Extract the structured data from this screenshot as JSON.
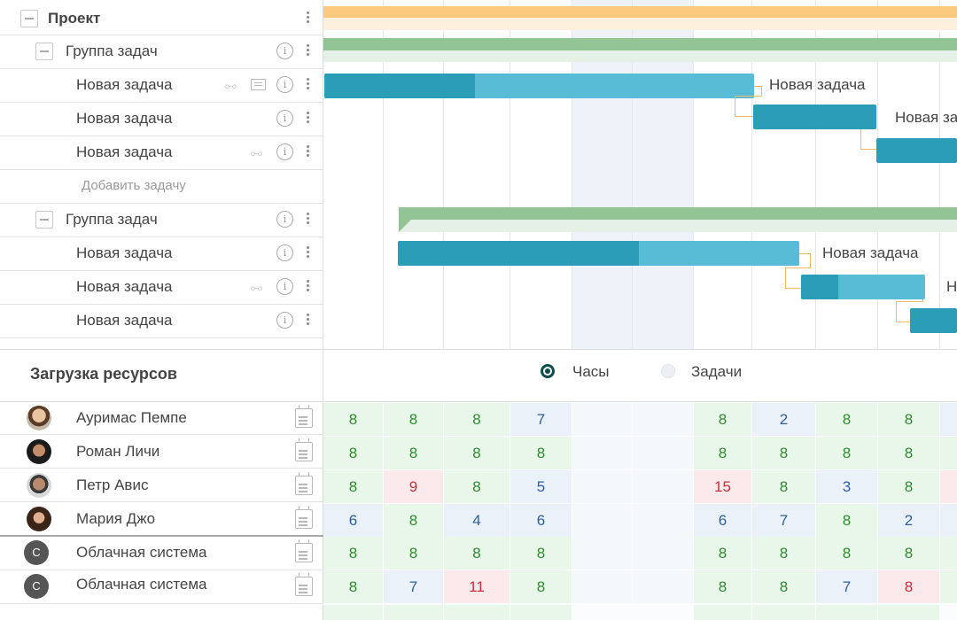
{
  "tree": {
    "project": {
      "label": "Проект"
    },
    "groups": [
      {
        "label": "Группа задач",
        "tasks": [
          {
            "label": "Новая задача",
            "attachment": true,
            "comment": true
          },
          {
            "label": "Новая задача",
            "attachment": false,
            "comment": false
          },
          {
            "label": "Новая задача",
            "attachment": true,
            "comment": false
          }
        ],
        "add_task_label": "Добавить задачу"
      },
      {
        "label": "Группа задач",
        "tasks": [
          {
            "label": "Новая задача",
            "attachment": false,
            "comment": false
          },
          {
            "label": "Новая задача",
            "attachment": true,
            "comment": false
          },
          {
            "label": "Новая задача",
            "attachment": false,
            "comment": false
          }
        ]
      }
    ]
  },
  "gantt": {
    "bar_labels": [
      "Новая задача",
      "Новая задача",
      "Новая задача",
      "Н"
    ],
    "progress": [
      0.35,
      0.0,
      0.0,
      0.6,
      0.3,
      0.0
    ],
    "colors": {
      "project": "#fcca7e",
      "group": "#92c496",
      "task": "#58bcd6",
      "task_progress": "#2c9db6",
      "link": "#f5b860"
    }
  },
  "resources": {
    "title": "Загрузка ресурсов",
    "mode_hours": "Часы",
    "mode_tasks": "Задачи",
    "selected_mode": "hours",
    "people": [
      {
        "name": "Ауримас Пемпе",
        "avatar": "photo",
        "values": [
          "8",
          "8",
          "8",
          "7",
          "",
          "",
          "8",
          "2",
          "8",
          "8",
          ""
        ],
        "types": [
          "g",
          "g",
          "g",
          "b",
          "e",
          "e",
          "g",
          "b",
          "g",
          "g",
          "b"
        ]
      },
      {
        "name": "Роман Личи",
        "avatar": "photo",
        "values": [
          "8",
          "8",
          "8",
          "8",
          "",
          "",
          "8",
          "8",
          "8",
          "8",
          ""
        ],
        "types": [
          "g",
          "g",
          "g",
          "g",
          "e",
          "e",
          "g",
          "g",
          "g",
          "g",
          "g"
        ]
      },
      {
        "name": "Петр Авис",
        "avatar": "photo",
        "values": [
          "8",
          "9",
          "8",
          "5",
          "",
          "",
          "15",
          "8",
          "3",
          "8",
          ""
        ],
        "types": [
          "g",
          "r",
          "g",
          "b",
          "e",
          "e",
          "r",
          "g",
          "b",
          "g",
          "r"
        ]
      },
      {
        "name": "Мария Джо",
        "avatar": "photo",
        "values": [
          "6",
          "8",
          "4",
          "6",
          "",
          "",
          "6",
          "7",
          "8",
          "2",
          ""
        ],
        "types": [
          "b",
          "g",
          "b",
          "b",
          "e",
          "e",
          "b",
          "b",
          "g",
          "b",
          "b"
        ]
      },
      {
        "name": "Облачная система",
        "avatar_letter": "С",
        "values": [
          "8",
          "8",
          "8",
          "8",
          "",
          "",
          "8",
          "8",
          "8",
          "8",
          ""
        ],
        "types": [
          "g",
          "g",
          "g",
          "g",
          "e",
          "e",
          "g",
          "g",
          "g",
          "g",
          "g"
        ]
      },
      {
        "name": "Облачная система",
        "avatar_letter": "С",
        "values": [
          "8",
          "7",
          "11",
          "8",
          "",
          "",
          "8",
          "8",
          "7",
          "8",
          ""
        ],
        "types": [
          "g",
          "b",
          "r",
          "g",
          "e",
          "e",
          "g",
          "g",
          "b",
          "r",
          "g"
        ]
      }
    ]
  }
}
